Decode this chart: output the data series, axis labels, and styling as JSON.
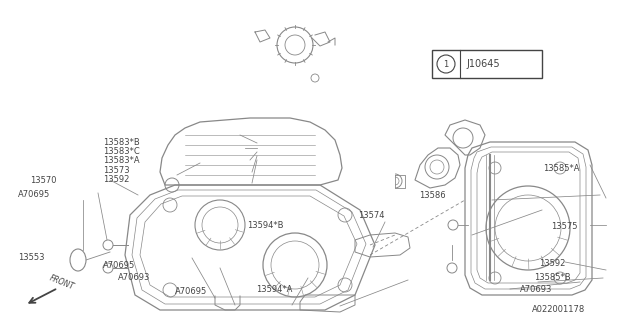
{
  "bg_color": "#ffffff",
  "line_color": "#888888",
  "dark_color": "#444444",
  "labels": {
    "13583B": [
      0.175,
      0.8,
      "13583*B"
    ],
    "13583C": [
      0.175,
      0.745,
      "13583*C"
    ],
    "13583A": [
      0.175,
      0.695,
      "13583*A"
    ],
    "13573": [
      0.175,
      0.645,
      "13573"
    ],
    "13592a": [
      0.175,
      0.595,
      "13592"
    ],
    "13570": [
      0.055,
      0.56,
      "13570"
    ],
    "A70695a": [
      0.037,
      0.505,
      "A70695"
    ],
    "13553": [
      0.037,
      0.38,
      "13553"
    ],
    "A70695b": [
      0.175,
      0.275,
      "A70695"
    ],
    "A70693a": [
      0.2,
      0.215,
      "A70693"
    ],
    "A70695c": [
      0.3,
      0.145,
      "A70695"
    ],
    "13594B": [
      0.395,
      0.445,
      "13594*B"
    ],
    "13594A": [
      0.41,
      0.145,
      "13594*A"
    ],
    "13574": [
      0.575,
      0.42,
      "13574"
    ],
    "13586": [
      0.655,
      0.485,
      "13586"
    ],
    "13585A": [
      0.845,
      0.525,
      "13585*A"
    ],
    "13575": [
      0.87,
      0.375,
      "13575"
    ],
    "13592b": [
      0.755,
      0.285,
      "13592"
    ],
    "13585B": [
      0.655,
      0.215,
      "13585*B"
    ],
    "A70693b": [
      0.64,
      0.155,
      "A70693"
    ],
    "A022": [
      0.835,
      0.038,
      "A022001178"
    ],
    "J10645": [
      0.72,
      0.865,
      "J10645"
    ]
  }
}
